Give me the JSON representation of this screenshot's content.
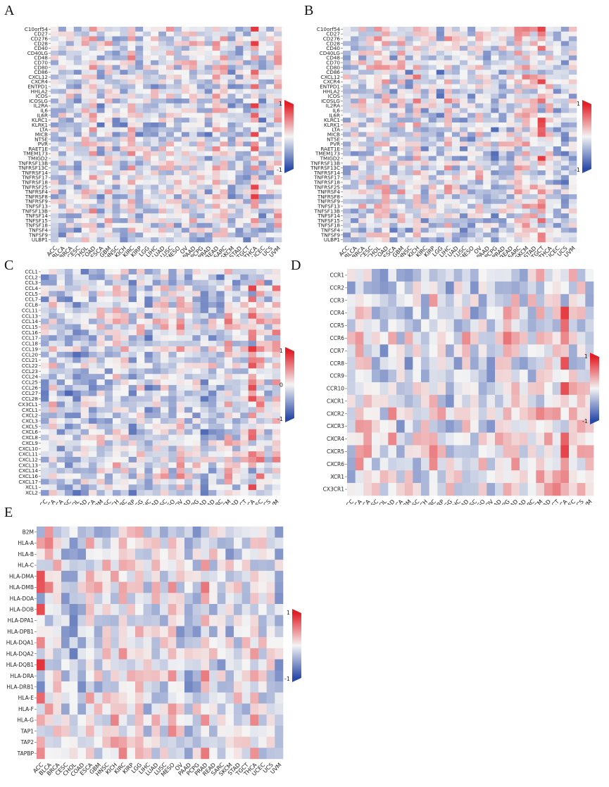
{
  "colors": {
    "high": "#e21f26",
    "mid": "#f4f4f4",
    "low": "#2a4aa8"
  },
  "chart_data": [
    {
      "id": "A",
      "type": "heatmap",
      "panel_label": "A",
      "rows": [
        "C10orf54",
        "CD27",
        "CD276",
        "CD28",
        "CD40",
        "CD40LG",
        "CD48",
        "CD70",
        "CD80",
        "CD86",
        "CXCL12",
        "CXCR4",
        "ENTPD1",
        "HHLA2",
        "ICOS",
        "ICOSLG",
        "IL2RA",
        "IL6",
        "IL6R",
        "KLRC1",
        "KLRK1",
        "LTA",
        "MICB",
        "NT5E",
        "PVR",
        "RAET1E",
        "TMEM173",
        "TMIGD2",
        "TNFRSF13B",
        "TNFRSF13C",
        "TNFRSF14",
        "TNFRSF17",
        "TNFRSF18",
        "TNFRSF25",
        "TNFRSF4",
        "TNFRSF8",
        "TNFRSF9",
        "TNFSF13",
        "TNFSF13B",
        "TNFSF14",
        "TNFSF15",
        "TNFSF18",
        "TNFSF4",
        "TNFSF9",
        "ULBP1"
      ],
      "columns": [
        "ACC",
        "BLCA",
        "BRCA",
        "CESC",
        "CHOL",
        "COAD",
        "ESCA",
        "GBM",
        "HNSC",
        "KICH",
        "KIRC",
        "KIRP",
        "LGG",
        "LIHC",
        "LUAD",
        "LUSC",
        "MESO",
        "OV",
        "PAAD",
        "PCPG",
        "PRAD",
        "READ",
        "SARC",
        "SKCM",
        "STAD",
        "TGCT",
        "THCA",
        "UCEC",
        "UCS",
        "UVM"
      ],
      "colorbar": {
        "max_label": "1",
        "mid_label": "",
        "min_label": "-1"
      },
      "range": [
        -1,
        1
      ],
      "seed": 11,
      "hot_columns": [
        "THCA"
      ]
    },
    {
      "id": "B",
      "type": "heatmap",
      "panel_label": "B",
      "rows": [
        "C10orf54",
        "CD27",
        "CD276",
        "CD28",
        "CD40",
        "CD40LG",
        "CD48",
        "CD70",
        "CD80",
        "CD86",
        "CXCL12",
        "CXCR4",
        "ENTPD1",
        "HHLA2",
        "ICOS",
        "ICOSLG",
        "IL2RA",
        "IL6",
        "IL6R",
        "KLRC1",
        "KLRK1",
        "LTA",
        "MICB",
        "NT5E",
        "PVR",
        "RAET1E",
        "TMEM173",
        "TMIGD2",
        "TNFRSF13B",
        "TNFRSF13C",
        "TNFRSF14",
        "TNFRSF17",
        "TNFRSF18",
        "TNFRSF25",
        "TNFRSF4",
        "TNFRSF8",
        "TNFRSF9",
        "TNFSF13",
        "TNFSF13B",
        "TNFSF14",
        "TNFSF15",
        "TNFSF18",
        "TNFSF4",
        "TNFSF9",
        "ULBP1"
      ],
      "columns": [
        "ACC",
        "BLCA",
        "BRCA",
        "CESC",
        "CHOL",
        "COAD",
        "ESCA",
        "GBM",
        "HNSC",
        "KICH",
        "KIRC",
        "KIRP",
        "LGG",
        "LIHC",
        "LUAD",
        "LUSC",
        "MESO",
        "OV",
        "PAAD",
        "PCPG",
        "PRAD",
        "READ",
        "SARC",
        "SKCM",
        "STAD",
        "TGCT",
        "THCA",
        "UCEC",
        "UCS",
        "UVM"
      ],
      "colorbar": {
        "max_label": "1",
        "mid_label": "",
        "min_label": "-1"
      },
      "range": [
        -1,
        1
      ],
      "seed": 23,
      "hot_columns": [
        "TGCT"
      ]
    },
    {
      "id": "C",
      "type": "heatmap",
      "panel_label": "C",
      "rows": [
        "CCL1",
        "CCL2",
        "CCL3",
        "CCL4",
        "CCL5",
        "CCL7",
        "CCL8",
        "CCL11",
        "CCL13",
        "CCL14",
        "CCL15",
        "CCL16",
        "CCL17",
        "CCL18",
        "CCL19",
        "CCL20",
        "CCL21",
        "CCL22",
        "CCL23",
        "CCL24",
        "CCL25",
        "CCL26",
        "CCL27",
        "CCL28",
        "CX3CL1",
        "CXCL1",
        "CXCL2",
        "CXCL3",
        "CXCL5",
        "CXCL6",
        "CXCL8",
        "CXCL9",
        "CXCL10",
        "CXCL11",
        "CXCL12",
        "CXCL13",
        "CXCL14",
        "CXCL16",
        "CXCL17",
        "XCL1",
        "XCL2"
      ],
      "columns": [
        "ACC",
        "BLCA",
        "BRCA",
        "CESC",
        "CHOL",
        "COAD",
        "ESCA",
        "GBM",
        "HNSC",
        "KICH",
        "KIRC",
        "KIRP",
        "LGG",
        "LIHC",
        "LUAD",
        "LUSC",
        "MESO",
        "OV",
        "PAAD",
        "PCPG",
        "PRAD",
        "READ",
        "SARC",
        "SKCM",
        "STAD",
        "TGCT",
        "THCA",
        "UCEC",
        "UCS",
        "UVM"
      ],
      "colorbar": {
        "max_label": "1",
        "mid_label": "0",
        "min_label": "-1"
      },
      "range": [
        -1,
        1
      ],
      "seed": 37,
      "hot_columns": [
        "THCA"
      ]
    },
    {
      "id": "D",
      "type": "heatmap",
      "panel_label": "D",
      "rows": [
        "CCR1",
        "CCR2",
        "CCR3",
        "CCR4",
        "CCR5",
        "CCR6",
        "CCR7",
        "CCR8",
        "CCR9",
        "CCR10",
        "CXCR1",
        "CXCR2",
        "CXCR3",
        "CXCR4",
        "CXCR5",
        "CXCR6",
        "XCR1",
        "CX3CR1"
      ],
      "columns": [
        "ACC",
        "BLCA",
        "BRCA",
        "CESC",
        "CHOL",
        "COAD",
        "ESCA",
        "GBM",
        "HNSC",
        "KICH",
        "KIRC",
        "KIRP",
        "LGG",
        "LIHC",
        "LUAD",
        "LUSC",
        "MESO",
        "OV",
        "PAAD",
        "PCPG",
        "PRAD",
        "READ",
        "SARC",
        "SKCM",
        "STAD",
        "TGCT",
        "THCA",
        "UCEC",
        "UCS",
        "UVM"
      ],
      "colorbar": {
        "max_label": "1",
        "mid_label": "",
        "min_label": "-1"
      },
      "range": [
        -1,
        1
      ],
      "seed": 51,
      "hot_columns": [
        "THCA"
      ]
    },
    {
      "id": "E",
      "type": "heatmap",
      "panel_label": "E",
      "rows": [
        "B2M",
        "HLA-A",
        "HLA-B",
        "HLA-C",
        "HLA-DMA",
        "HLA-DMB",
        "HLA-DOA",
        "HLA-DOB",
        "HLA-DPA1",
        "HLA-DPB1",
        "HLA-DQA1",
        "HLA-DQA2",
        "HLA-DQB1",
        "HLA-DRA",
        "HLA-DRB1",
        "HLA-E",
        "HLA-F",
        "HLA-G",
        "TAP1",
        "TAP2",
        "TAPBP"
      ],
      "columns": [
        "ACC",
        "BLCA",
        "BRCA",
        "CESC",
        "CHOL",
        "COAD",
        "ESCA",
        "GBM",
        "HNSC",
        "KICH",
        "KIRC",
        "KIRP",
        "LGG",
        "LIHC",
        "LUAD",
        "LUSC",
        "MESO",
        "OV",
        "PAAD",
        "PCPG",
        "PRAD",
        "READ",
        "SARC",
        "SKCM",
        "STAD",
        "TGCT",
        "THCA",
        "UCEC",
        "UCS",
        "UVM"
      ],
      "colorbar": {
        "max_label": "1",
        "mid_label": "",
        "min_label": "-1"
      },
      "range": [
        -1,
        1
      ],
      "seed": 73,
      "hot_columns": [
        "ACC"
      ]
    }
  ]
}
